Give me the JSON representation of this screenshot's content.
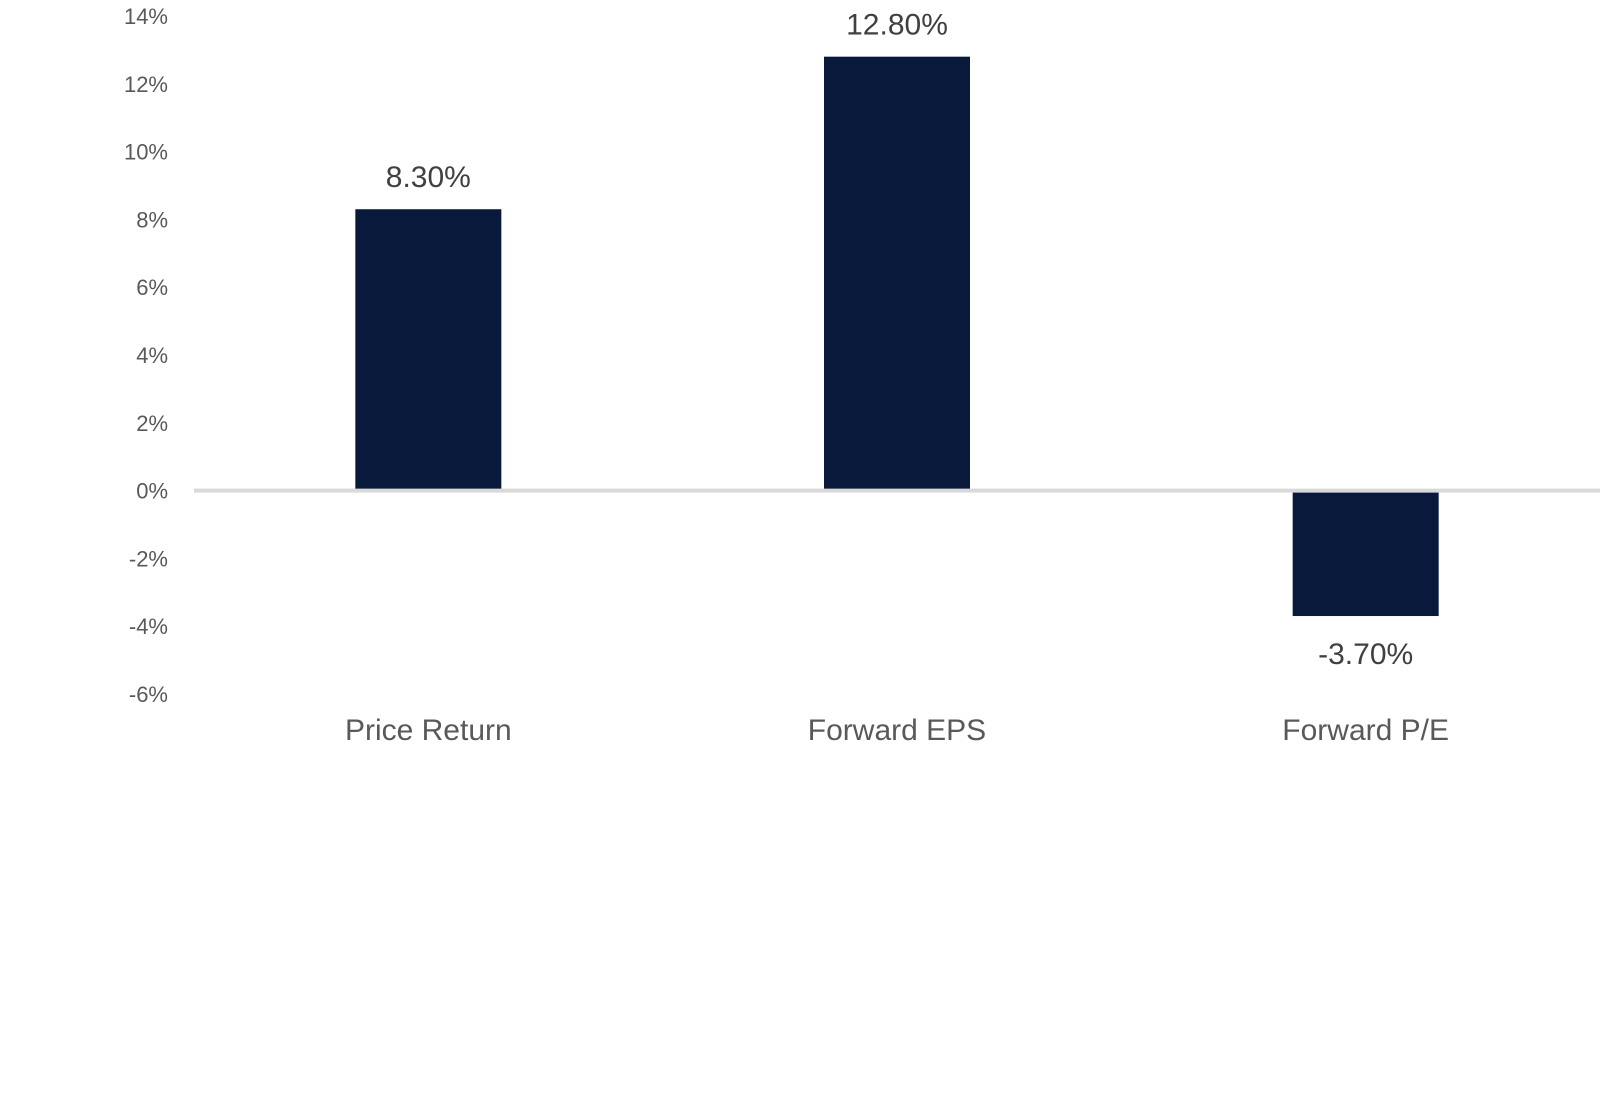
{
  "chart_data": {
    "type": "bar",
    "title": "",
    "xlabel": "",
    "ylabel": "",
    "categories": [
      "Price Return",
      "Forward EPS",
      "Forward P/E"
    ],
    "values": [
      8.3,
      12.8,
      -3.7
    ],
    "data_labels": [
      "8.30%",
      "12.80%",
      "-3.70%"
    ],
    "ylim": [
      -6,
      14
    ],
    "yticks": [
      14,
      12,
      10,
      8,
      6,
      4,
      2,
      0,
      -2,
      -4,
      -6
    ],
    "ytick_labels": [
      "14%",
      "12%",
      "10%",
      "8%",
      "6%",
      "4%",
      "2%",
      "0%",
      "-2%",
      "-4%",
      "-6%"
    ],
    "grid": false,
    "legend": "none",
    "colors": {
      "bar": "#08193B",
      "zero_line": "#D9D9D9",
      "tick_text": "#595959",
      "label_text": "#404040"
    }
  }
}
